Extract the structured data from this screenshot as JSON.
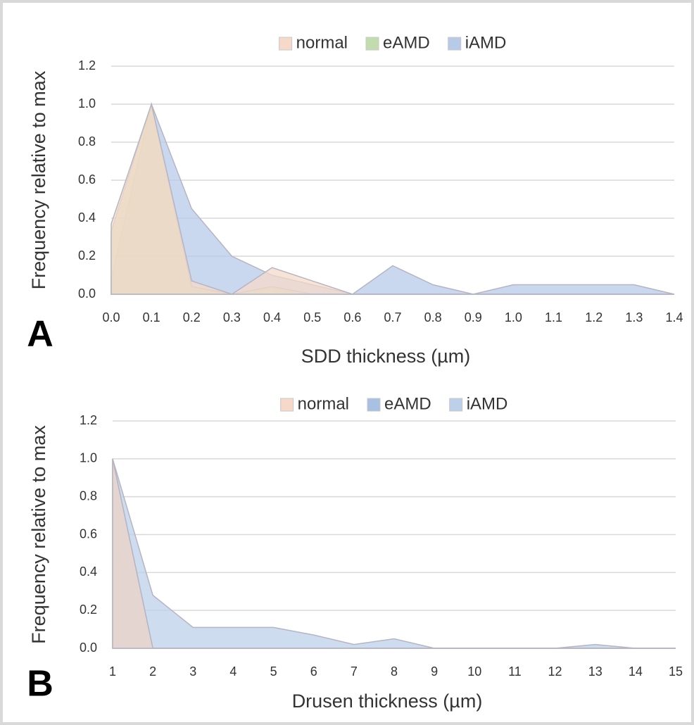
{
  "chart_data": [
    {
      "type": "area",
      "panel_label": "A",
      "xlabel": "SDD thickness (µm)",
      "ylabel": "Frequency relative to max",
      "x": [
        {
          "value": 0,
          "label": "0.0"
        },
        0.1,
        0.2,
        0.3,
        0.4,
        0.5,
        0.6,
        0.7,
        0.8,
        0.9,
        {
          "value": 1,
          "label": "1.0"
        },
        1.1,
        1.2,
        1.3,
        1.4
      ],
      "xlim": [
        0,
        1.4
      ],
      "xticks": [
        {
          "value": 0,
          "label": "0.0"
        },
        0.1,
        0.2,
        0.3,
        0.4,
        0.5,
        0.6,
        0.7,
        0.8,
        0.9,
        {
          "value": 1,
          "label": "1.0"
        },
        1.1,
        1.2,
        1.3,
        1.4
      ],
      "ylim": [
        0,
        1.2
      ],
      "yticks": [
        {
          "value": 0,
          "label": "0.0"
        },
        0.2,
        0.4,
        0.6,
        0.8,
        {
          "value": 1,
          "label": "1.0"
        },
        1.2
      ],
      "grid": true,
      "legend": "top",
      "series": [
        {
          "name": "normal",
          "color": "#f6d9c9",
          "values": [
            0.37,
            1.0,
            0.07,
            0.0,
            0.14,
            0.07,
            0.0,
            0,
            0,
            0,
            0,
            0,
            0,
            0,
            0
          ]
        },
        {
          "name": "eAMD",
          "color": "#c3dcae",
          "values": [
            0.33,
            1.0,
            0.04,
            0.0,
            0.04,
            0.0,
            0,
            0,
            0,
            0,
            0,
            0,
            0,
            0,
            0
          ]
        },
        {
          "name": "iAMD",
          "color": "#b7cbe8",
          "values": [
            0.08,
            1.0,
            0.45,
            0.2,
            0.1,
            0.05,
            0.0,
            0.15,
            0.05,
            0.0,
            0.05,
            0.05,
            0.05,
            0.05,
            0.0
          ]
        }
      ]
    },
    {
      "type": "area",
      "panel_label": "B",
      "xlabel": "Drusen thickness (µm)",
      "ylabel": "Frequency relative to max",
      "x": [
        1,
        2,
        3,
        4,
        5,
        6,
        7,
        8,
        9,
        10,
        11,
        12,
        13,
        14,
        15
      ],
      "xlim": [
        1,
        15
      ],
      "xticks": [
        1,
        2,
        3,
        4,
        5,
        6,
        7,
        8,
        9,
        10,
        11,
        12,
        13,
        14,
        15
      ],
      "ylim": [
        0,
        1.2
      ],
      "yticks": [
        {
          "value": 0,
          "label": "0.0"
        },
        0.2,
        0.4,
        0.6,
        0.8,
        {
          "value": 1,
          "label": "1.0"
        },
        1.2
      ],
      "grid": true,
      "legend": "top",
      "series": [
        {
          "name": "normal",
          "color": "#f6d9c9",
          "values": [
            1.0,
            0,
            0,
            0,
            0,
            0,
            0,
            0,
            0,
            0,
            0,
            0,
            0,
            0,
            0
          ]
        },
        {
          "name": "eAMD",
          "color": "#a8c0e2",
          "values": [
            1.0,
            0,
            0,
            0,
            0,
            0,
            0,
            0,
            0,
            0,
            0,
            0,
            0,
            0,
            0
          ]
        },
        {
          "name": "iAMD",
          "color": "#bdd0ea",
          "values": [
            1.0,
            0.28,
            0.11,
            0.11,
            0.11,
            0.07,
            0.02,
            0.05,
            0,
            0,
            0,
            0,
            0.02,
            0,
            0
          ]
        }
      ]
    }
  ]
}
